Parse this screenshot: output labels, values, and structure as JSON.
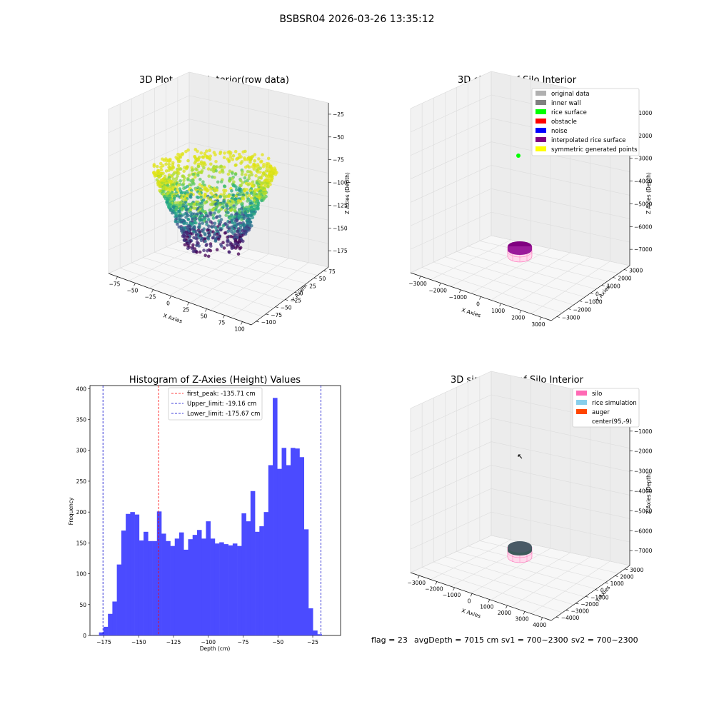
{
  "figure_title": "BSBSR04 2026-03-26 13:35:12",
  "status_line": {
    "flag": "flag = 23",
    "avg_depth": "avgDepth = 7015 cm",
    "sv1": "sv1 = 700~2300",
    "sv2": "sv2 = 700~2300"
  },
  "colors": {
    "hist_bar": "#4b4bff",
    "first_peak_line": "#ff0000",
    "limit_line": "#0000cc",
    "silo_wire": "#ff69b4",
    "rice_surface_top": "#800080",
    "sim_top": "#4a5a66"
  },
  "chart_data": [
    {
      "type": "scatter",
      "title": "3D Plot of Silo Interior(row data)",
      "xlabel": "X Axies",
      "ylabel": "Y Axies",
      "zlabel": "Z Axies (Depth)",
      "x_ticks": [
        "−75",
        "−50",
        "−25",
        "0",
        "25",
        "50",
        "75",
        "100"
      ],
      "y_ticks": [
        "−100",
        "−75",
        "−50",
        "−25",
        "0",
        "25",
        "50",
        "75"
      ],
      "z_ticks": [
        "−25",
        "−50",
        "−75",
        "−100",
        "−125",
        "−150",
        "−175"
      ],
      "xlim": [
        -85,
        110
      ],
      "ylim": [
        -100,
        85
      ],
      "zlim": [
        -185,
        -10
      ],
      "colormap": "viridis"
    },
    {
      "type": "scatter",
      "title": "3D classify of Silo Interior",
      "xlabel": "X Axies",
      "ylabel": "Y Axies",
      "zlabel": "Z Axies (Depth)",
      "x_ticks": [
        "−3000",
        "−2000",
        "−1000",
        "0",
        "1000",
        "2000",
        "3000"
      ],
      "y_ticks": [
        "−3000",
        "−2000",
        "−1000",
        "0",
        "1000",
        "2000",
        "3000"
      ],
      "z_ticks": [
        "−1000",
        "−2000",
        "−3000",
        "−4000",
        "−5000",
        "−6000",
        "−7000"
      ],
      "legend": [
        {
          "label": "original data",
          "color": "#b0b0b0"
        },
        {
          "label": "inner wall",
          "color": "#808080"
        },
        {
          "label": "rice surface",
          "color": "#00ff00"
        },
        {
          "label": "obstacle",
          "color": "#ff0000"
        },
        {
          "label": "noise",
          "color": "#0000ff"
        },
        {
          "label": "interpolated rice surface",
          "color": "#800080"
        },
        {
          "label": "symmetric generated points",
          "color": "#ffff00"
        }
      ],
      "legend_position": "top-right"
    },
    {
      "type": "bar",
      "title": "Histogram of Z-Axies (Height) Values",
      "xlabel": "Depth (cm)",
      "ylabel": "Frequency",
      "xlim": [
        -185,
        -5
      ],
      "ylim": [
        0,
        405
      ],
      "x_ticks": [
        -175,
        -150,
        -125,
        -100,
        -75,
        -50,
        -25
      ],
      "x_tick_labels": [
        "−175",
        "−150",
        "−125",
        "−100",
        "−75",
        "−50",
        "−25"
      ],
      "y_ticks": [
        0,
        50,
        100,
        150,
        200,
        250,
        300,
        350,
        400
      ],
      "bin_start": -178.5,
      "bin_width": 3.2,
      "values": [
        5,
        14,
        35,
        55,
        115,
        170,
        197,
        200,
        196,
        154,
        168,
        153,
        153,
        201,
        165,
        153,
        145,
        157,
        167,
        139,
        156,
        163,
        171,
        157,
        185,
        157,
        149,
        151,
        148,
        146,
        149,
        145,
        198,
        185,
        234,
        168,
        177,
        200,
        276,
        385,
        270,
        304,
        276,
        304,
        303,
        289,
        172,
        44,
        8,
        2
      ],
      "lines": [
        {
          "label": "first_peak: -135.71 cm",
          "x": -135.71,
          "color": "#ff0000"
        },
        {
          "label": "Upper_limit: -19.16 cm",
          "x": -19.16,
          "color": "#0000cc"
        },
        {
          "label": "Lower_limit: -175.67 cm",
          "x": -175.67,
          "color": "#0000cc"
        }
      ],
      "legend_position": "top-center"
    },
    {
      "type": "scatter",
      "title": "3D simulation of Silo Interior",
      "xlabel": "X Axies",
      "ylabel": "Y Axies",
      "zlabel": "Z Axies (Depth)",
      "x_ticks": [
        "−3000",
        "−2000",
        "−1000",
        "0",
        "1000",
        "2000",
        "3000",
        "4000"
      ],
      "y_ticks": [
        "−4000",
        "−3000",
        "−2000",
        "−1000",
        "0",
        "1000",
        "2000",
        "3000"
      ],
      "z_ticks": [
        "0",
        "−1000",
        "−2000",
        "−3000",
        "−4000",
        "−5000",
        "−6000",
        "−7000"
      ],
      "legend": [
        {
          "label": "silo",
          "color": "#ff69b4"
        },
        {
          "label": "rice simulation",
          "color": "#87ceeb"
        },
        {
          "label": "auger",
          "color": "#ff4500"
        },
        {
          "label": "center(95,-9)",
          "color": ""
        }
      ],
      "legend_position": "top-right"
    }
  ]
}
